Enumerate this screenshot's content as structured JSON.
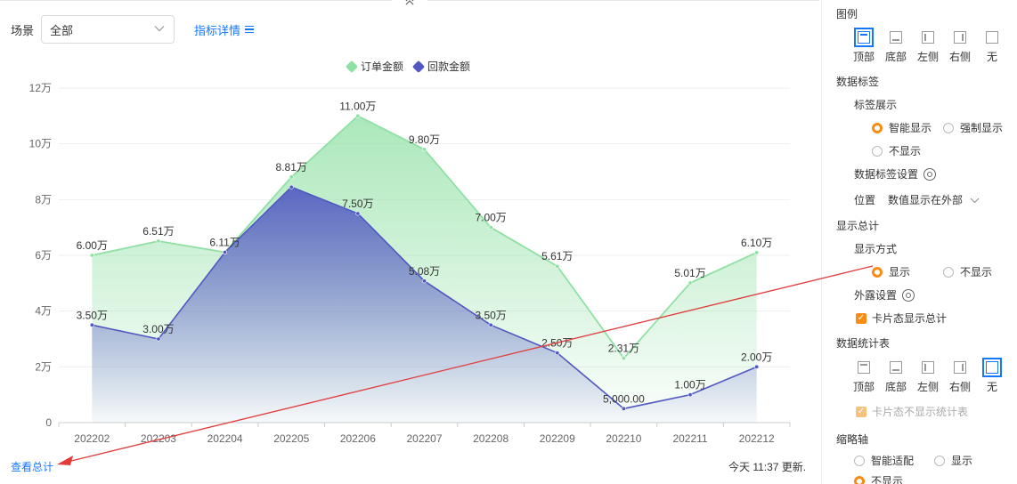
{
  "toolbar": {
    "scene_label": "场景",
    "scene_value": "全部",
    "detail_link": "指标详情"
  },
  "legend": [
    {
      "name": "订单金额",
      "color": "#8fe0a3"
    },
    {
      "name": "回款金额",
      "color": "#5158c2"
    }
  ],
  "chart_data": {
    "type": "area",
    "categories": [
      "202202",
      "202203",
      "202204",
      "202205",
      "202206",
      "202207",
      "202208",
      "202209",
      "202210",
      "202211",
      "202212"
    ],
    "series": [
      {
        "name": "订单金额",
        "color": "#8fe0a3",
        "values": [
          60000,
          65100,
          61100,
          88100,
          110000,
          98000,
          70000,
          56100,
          23100,
          50100,
          61000
        ],
        "labels": [
          "6.00万",
          "6.51万",
          "6.11万",
          "8.81万",
          "11.00万",
          "9.80万",
          "7.00万",
          "5.61万",
          "2.31万",
          "5.01万",
          "6.10万"
        ]
      },
      {
        "name": "回款金额",
        "color": "#5158c2",
        "values": [
          35000,
          30000,
          61100,
          84500,
          75000,
          50800,
          35000,
          25000,
          5000,
          10000,
          20000
        ],
        "labels": [
          "3.50万",
          "3.00万",
          "",
          "",
          "7.50万",
          "5.08万",
          "3.50万",
          "2.50万",
          "5,000.00",
          "1.00万",
          "2.00万"
        ]
      }
    ],
    "yticks": [
      "0",
      "2万",
      "4万",
      "6万",
      "8万",
      "10万",
      "12万"
    ],
    "ylim": [
      0,
      120000
    ],
    "grid": true,
    "legend_position": "top"
  },
  "footer": {
    "view_total": "查看总计",
    "update_time": "今天 11:37 更新."
  },
  "settings": {
    "legend_title": "图例",
    "legend_options": [
      {
        "label": "顶部",
        "glyph": "top",
        "selected": true
      },
      {
        "label": "底部",
        "glyph": "bottom",
        "selected": false
      },
      {
        "label": "左侧",
        "glyph": "left",
        "selected": false
      },
      {
        "label": "右侧",
        "glyph": "right",
        "selected": false
      },
      {
        "label": "无",
        "glyph": "none",
        "selected": false
      }
    ],
    "data_label_title": "数据标签",
    "label_display_title": "标签展示",
    "label_display_options": [
      "智能显示",
      "强制显示",
      "不显示"
    ],
    "label_setting": "数据标签设置",
    "position_label": "位置",
    "position_value": "数值显示在外部",
    "show_total_title": "显示总计",
    "display_mode_title": "显示方式",
    "display_mode_options": [
      "显示",
      "不显示"
    ],
    "exposure_setting": "外露设置",
    "card_show_total": "卡片态显示总计",
    "stat_table_title": "数据统计表",
    "stat_options": [
      {
        "label": "顶部",
        "glyph": "top",
        "selected": false
      },
      {
        "label": "底部",
        "glyph": "bottom",
        "selected": false
      },
      {
        "label": "左侧",
        "glyph": "left",
        "selected": false
      },
      {
        "label": "右侧",
        "glyph": "right",
        "selected": false
      },
      {
        "label": "无",
        "glyph": "none",
        "selected": true
      }
    ],
    "card_hide_stat": "卡片态不显示统计表",
    "thumb_axis_title": "缩略轴",
    "thumb_axis_options": [
      "智能适配",
      "显示",
      "不显示"
    ]
  }
}
